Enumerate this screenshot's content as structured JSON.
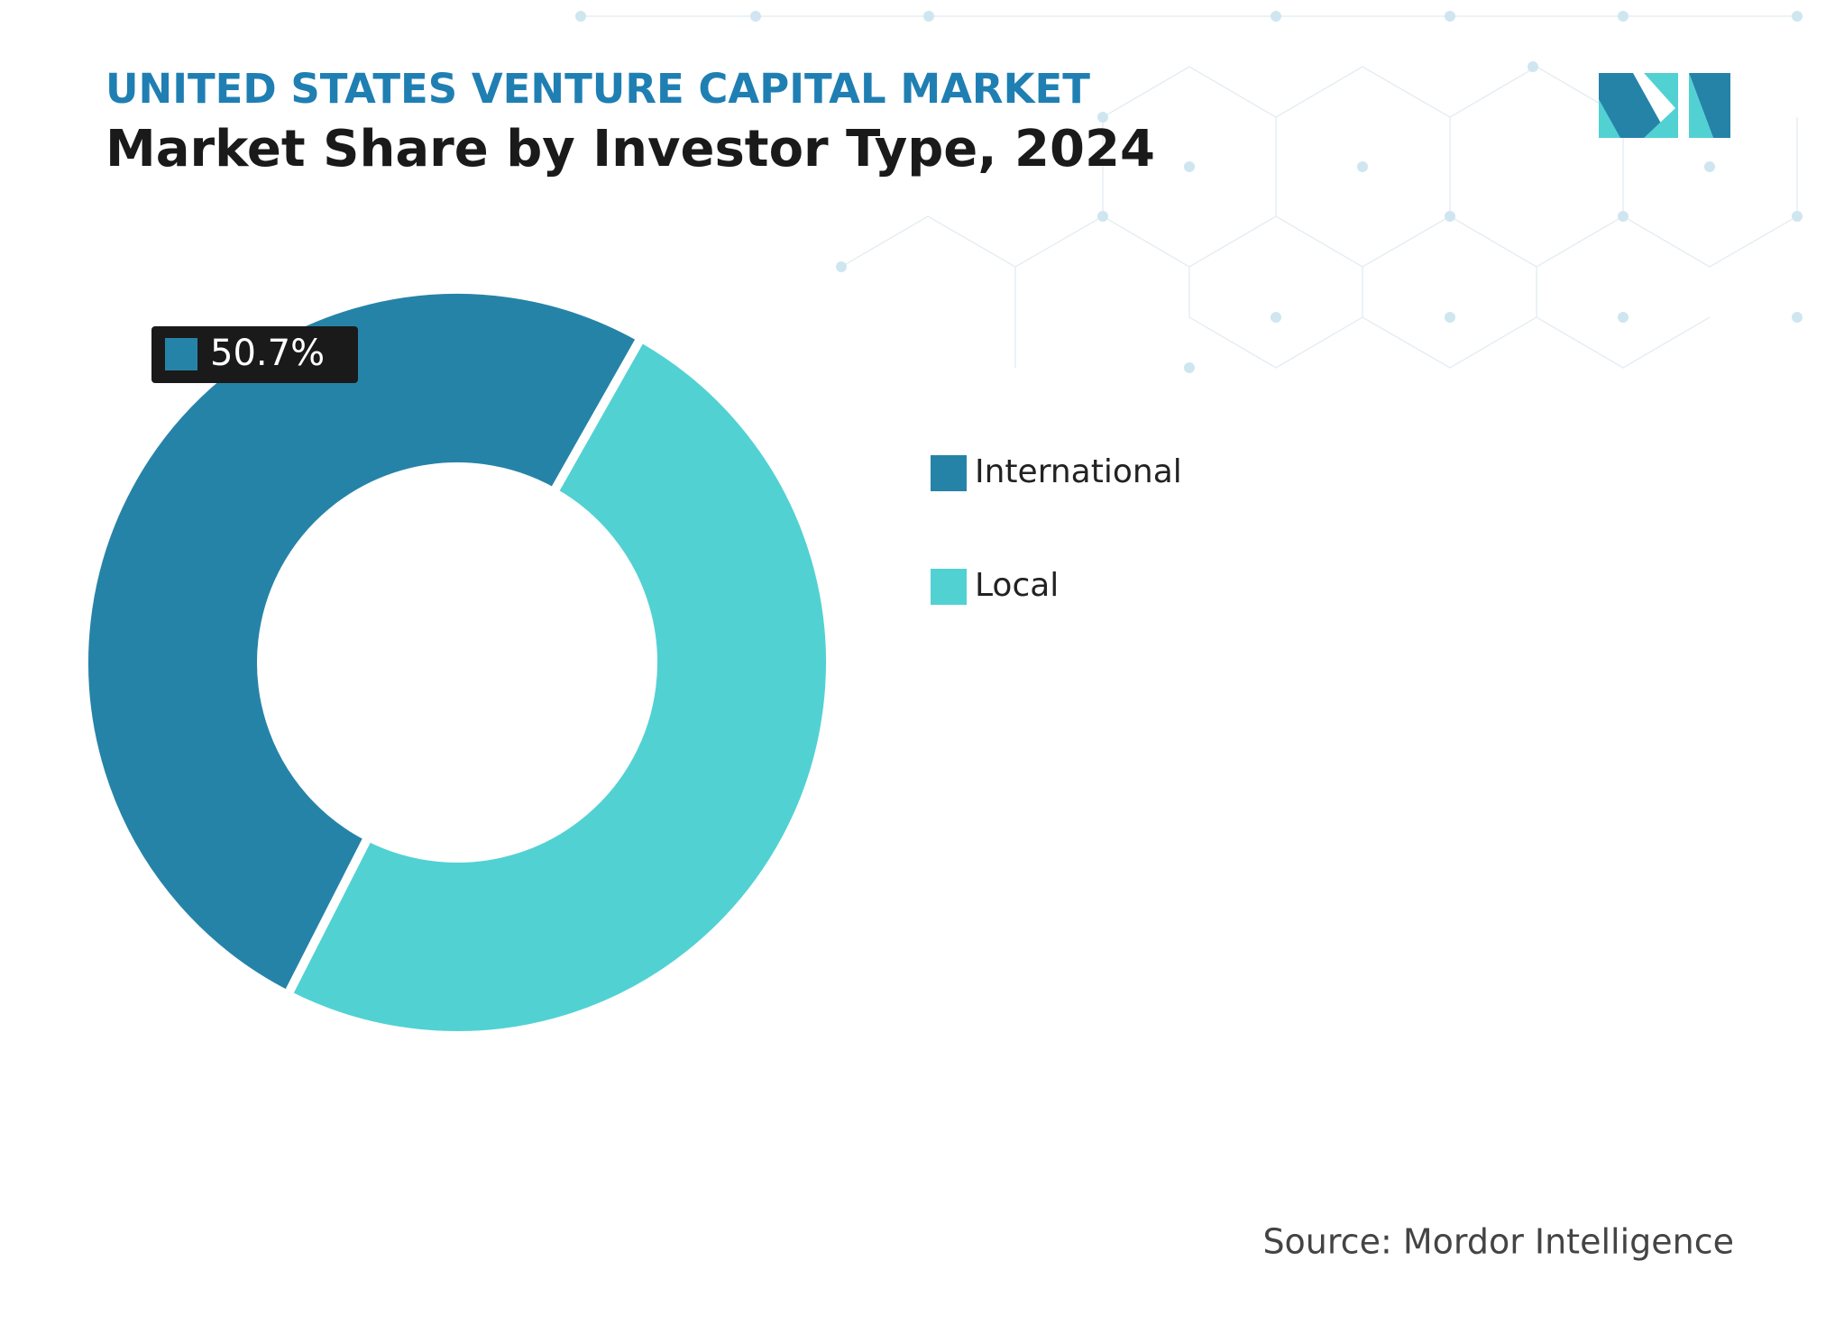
{
  "chart_data": {
    "type": "donut",
    "subtitle": "UNITED STATES VENTURE CAPITAL MARKET",
    "title": "Market Share by Investor Type, 2024",
    "categories": [
      "International",
      "Local"
    ],
    "values": [
      50.7,
      49.3
    ],
    "value_labels": [
      "50.7%",
      null
    ],
    "colors": [
      "#2683a8",
      "#52d1d3"
    ],
    "source": "Source: Mordor Intelligence"
  }
}
